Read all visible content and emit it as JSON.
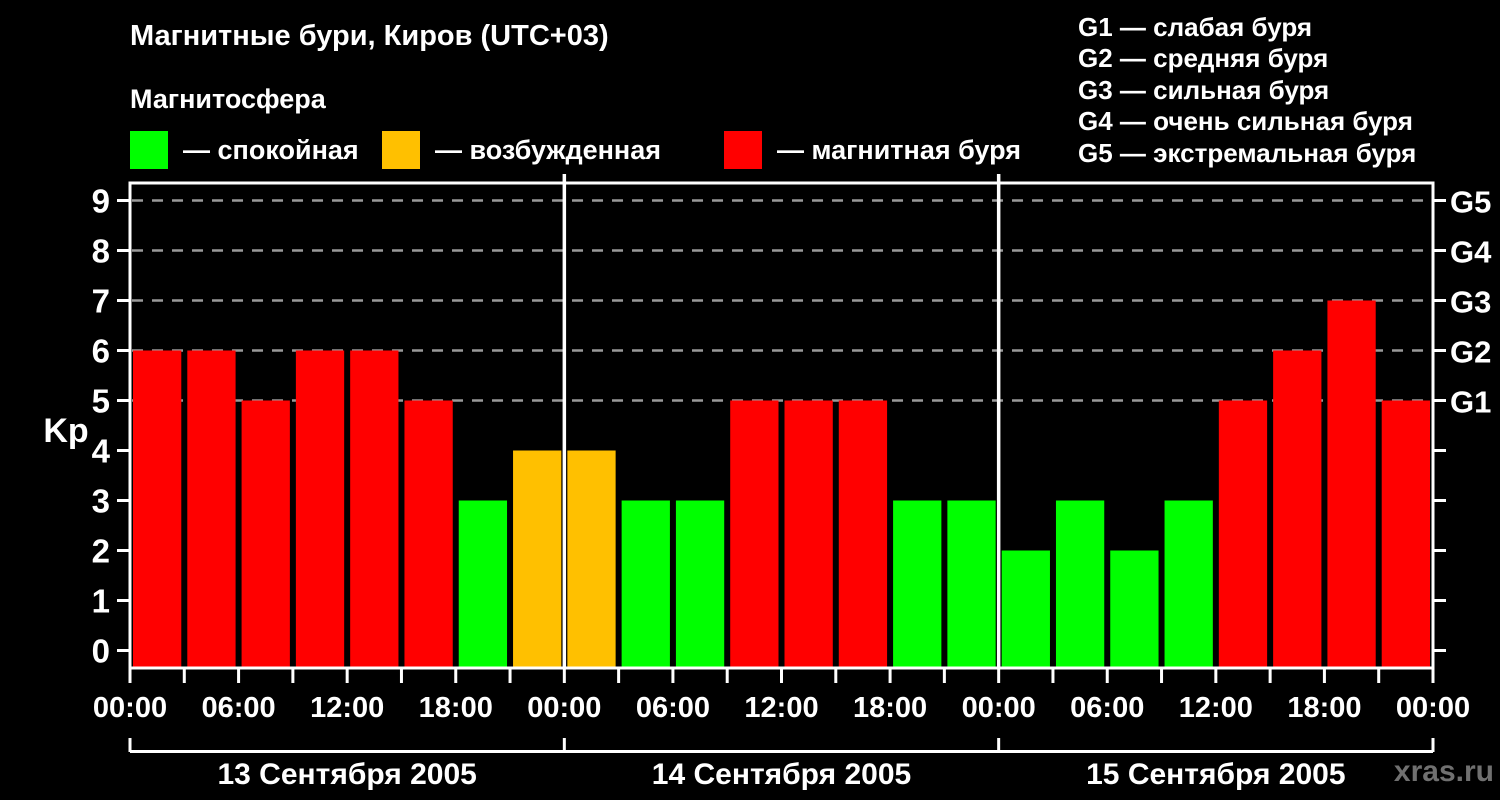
{
  "title": "Магнитные бури, Киров (UTC+03)",
  "subtitle": "Магнитосфера",
  "condition_legend": [
    {
      "key": "quiet",
      "color": "#00ff00",
      "label": "— спокойная"
    },
    {
      "key": "excited",
      "color": "#ffc000",
      "label": "— возбужденная"
    },
    {
      "key": "storm",
      "color": "#ff0000",
      "label": "— магнитная буря"
    }
  ],
  "storm_scale_legend": [
    {
      "code": "G1",
      "text": "G1 — слабая буря"
    },
    {
      "code": "G2",
      "text": "G2 — средняя буря"
    },
    {
      "code": "G3",
      "text": "G3 — сильная буря"
    },
    {
      "code": "G4",
      "text": "G4 — очень сильная буря"
    },
    {
      "code": "G5",
      "text": "G5 — экстремальная буря"
    }
  ],
  "watermark": "xras.ru",
  "chart_data": {
    "type": "bar",
    "ylabel": "Kp",
    "ylim": [
      0,
      9
    ],
    "yticks": [
      0,
      1,
      2,
      3,
      4,
      5,
      6,
      7,
      8,
      9
    ],
    "gridlines_at_kp": [
      5,
      6,
      7,
      8,
      9
    ],
    "grid_style": "dashed horizontal gray lines at storm levels only",
    "right_axis_labels": [
      {
        "kp": 5,
        "label": "G1"
      },
      {
        "kp": 6,
        "label": "G2"
      },
      {
        "kp": 7,
        "label": "G3"
      },
      {
        "kp": 8,
        "label": "G4"
      },
      {
        "kp": 9,
        "label": "G5"
      }
    ],
    "hours_per_bar": 3,
    "x_tick_interval_hours": 3,
    "x_label_interval_hours": 6,
    "x_tick_labels": [
      "00:00",
      "06:00",
      "12:00",
      "18:00",
      "00:00",
      "06:00",
      "12:00",
      "18:00",
      "00:00",
      "06:00",
      "12:00",
      "18:00",
      "00:00"
    ],
    "days": [
      {
        "date": "13 Сентября 2005",
        "kp_values": [
          6,
          6,
          5,
          6,
          6,
          5,
          3,
          4
        ]
      },
      {
        "date": "14 Сентября 2005",
        "kp_values": [
          4,
          3,
          3,
          5,
          5,
          5,
          3,
          3
        ]
      },
      {
        "date": "15 Сентября 2005",
        "kp_values": [
          2,
          3,
          2,
          3,
          5,
          6,
          7,
          5
        ]
      }
    ],
    "colors": {
      "quiet": "#00ff00",
      "excited": "#ffc000",
      "storm": "#ff0000"
    },
    "color_rule": {
      "quiet_kp_max": 3,
      "excited_kp": 4,
      "storm_kp_min": 5
    },
    "axis_color": "#ffffff",
    "gridline_color": "#999999",
    "background": "#000000",
    "legend_position": "top"
  }
}
